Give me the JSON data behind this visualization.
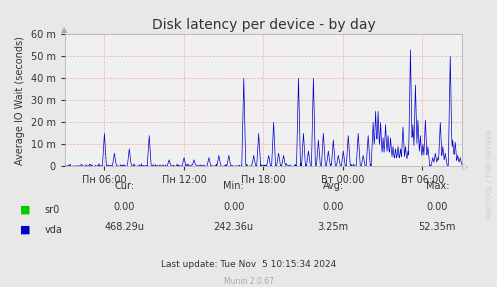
{
  "title": "Disk latency per device - by day",
  "ylabel": "Average IO Wait (seconds)",
  "bg_color": "#e8e8e8",
  "plot_bg_color": "#f0f0f0",
  "grid_color": "#ff9999",
  "line_color_vda": "#0000cc",
  "line_color_sr0": "#00cc00",
  "ylim": [
    0,
    60
  ],
  "ytick_labels": [
    "0",
    "10 m",
    "20 m",
    "30 m",
    "40 m",
    "50 m",
    "60 m"
  ],
  "ytick_values": [
    0,
    10,
    20,
    30,
    40,
    50,
    60
  ],
  "xtick_labels": [
    "Пн 06:00",
    "Пн 12:00",
    "Пн 18:00",
    "Вт 00:00",
    "Вт 06:00"
  ],
  "watermark": "RRDTOOL / TOBI OETIKER",
  "footer_munin": "Munin 2.0.67",
  "footer_update": "Last update: Tue Nov  5 10:15:34 2024",
  "legend_sr0_cur": "0.00",
  "legend_sr0_min": "0.00",
  "legend_sr0_avg": "0.00",
  "legend_sr0_max": "0.00",
  "legend_vda_cur": "468.29u",
  "legend_vda_min": "242.36u",
  "legend_vda_avg": "3.25m",
  "legend_vda_max": "52.35m"
}
